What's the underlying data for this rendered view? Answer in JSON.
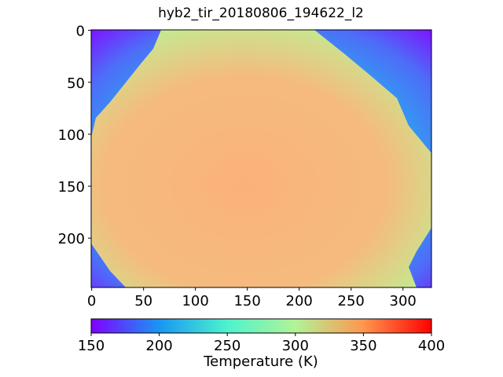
{
  "chart_data": {
    "type": "image",
    "title": "hyb2_tir_20180806_194622_l2",
    "xlim": [
      -0.5,
      327.5
    ],
    "ylim": [
      247.5,
      -0.5
    ],
    "xticks": [
      0,
      50,
      100,
      150,
      200,
      250,
      300
    ],
    "yticks": [
      0,
      50,
      100,
      150,
      200
    ],
    "colormap": "rainbow",
    "colorbar": {
      "label": "Temperature (K)",
      "lim": [
        150,
        400
      ],
      "ticks": [
        150,
        200,
        250,
        300,
        350,
        400
      ]
    }
  }
}
